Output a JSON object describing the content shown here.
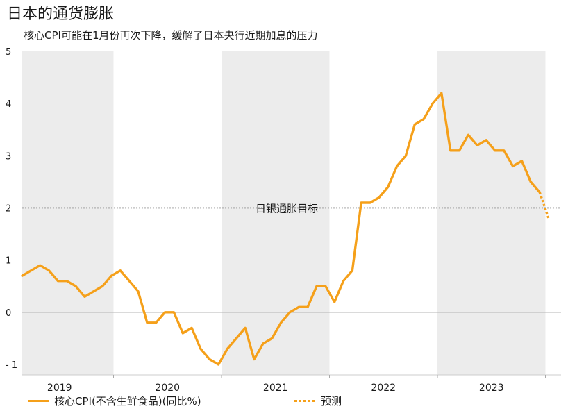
{
  "title": "日本的通货膨胀",
  "subtitle": "核心CPI可能在1月份再次下降，缓解了日本央行近期加息的压力",
  "colors": {
    "line": "#f5a01a",
    "band": "#ececec",
    "target": "#777777",
    "zero": "#b5b5b5"
  },
  "chart_data": {
    "type": "line",
    "title": "日本的通货膨胀",
    "subtitle": "核心CPI可能在1月份再次下降，缓解了日本央行近期加息的压力",
    "xlabel": "",
    "ylabel": "",
    "ylim": [
      -1.2,
      5
    ],
    "yticks": [
      5,
      4,
      3,
      2,
      1,
      0,
      -1
    ],
    "ytick_labels": [
      "5",
      "4",
      "3",
      "2",
      "1",
      "0",
      "- 1"
    ],
    "years": [
      "2019",
      "2020",
      "2021",
      "2022",
      "2023"
    ],
    "year_bands_shaded": [
      true,
      false,
      true,
      false,
      true
    ],
    "target_value": 2,
    "target_label": "日银通胀目标",
    "series": [
      {
        "name": "核心CPI(不含生鲜食品)(同比%)",
        "style": "solid",
        "values": [
          0.7,
          0.8,
          0.9,
          0.8,
          0.6,
          0.6,
          0.5,
          0.3,
          0.4,
          0.5,
          0.7,
          0.8,
          0.6,
          0.4,
          -0.2,
          -0.2,
          0.0,
          0.0,
          -0.4,
          -0.3,
          -0.7,
          -0.9,
          -1.0,
          -0.7,
          -0.5,
          -0.3,
          -0.9,
          -0.6,
          -0.5,
          -0.2,
          0.0,
          0.1,
          0.1,
          0.5,
          0.5,
          0.2,
          0.6,
          0.8,
          2.1,
          2.1,
          2.2,
          2.4,
          2.8,
          3.0,
          3.6,
          3.7,
          4.0,
          4.2,
          3.1,
          3.1,
          3.4,
          3.2,
          3.3,
          3.1,
          3.1,
          2.8,
          2.9,
          2.5,
          2.3
        ]
      },
      {
        "name": "预测",
        "style": "dotted",
        "start_index": 58,
        "values": [
          2.3,
          1.8
        ]
      }
    ]
  },
  "legend": {
    "actual_label": "核心CPI(不含生鲜食品)(同比%)",
    "forecast_label": "预测"
  }
}
